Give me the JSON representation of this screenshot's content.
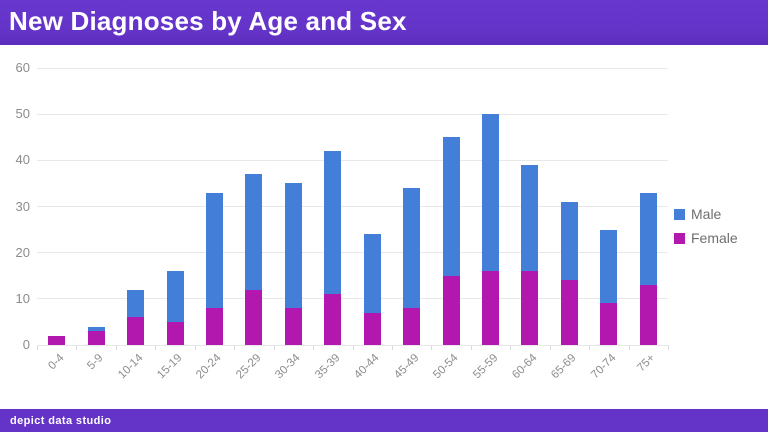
{
  "header": {
    "title": "New Diagnoses by Age and Sex"
  },
  "footer": {
    "brand": "depict data studio"
  },
  "theme": {
    "brand_purple": "#6433C8",
    "male_blue": "#437FD9",
    "female_magenta": "#B318AE",
    "grid_gray": "#E8E8E8",
    "axis_text_gray": "#8C8C8C"
  },
  "chart_data": {
    "type": "bar",
    "stacked": true,
    "title": "New Diagnoses by Age and Sex",
    "xlabel": "",
    "ylabel": "",
    "ylim": [
      0,
      60
    ],
    "yticks": [
      0,
      10,
      20,
      30,
      40,
      50,
      60
    ],
    "grid": true,
    "legend_position": "right",
    "categories": [
      "0-4",
      "5-9",
      "10-14",
      "15-19",
      "20-24",
      "25-29",
      "30-34",
      "35-39",
      "40-44",
      "45-49",
      "50-54",
      "55-59",
      "60-64",
      "65-69",
      "70-74",
      "75+"
    ],
    "series": [
      {
        "name": "Male",
        "color": "#437FD9",
        "stack_order": "top",
        "values": [
          0,
          1,
          6,
          11,
          25,
          25,
          27,
          31,
          17,
          26,
          30,
          34,
          23,
          17,
          16,
          20
        ]
      },
      {
        "name": "Female",
        "color": "#B318AE",
        "stack_order": "bottom",
        "values": [
          2,
          3,
          6,
          5,
          8,
          12,
          8,
          11,
          7,
          8,
          15,
          16,
          16,
          14,
          9,
          13
        ]
      }
    ],
    "totals": [
      2,
      4,
      12,
      16,
      33,
      37,
      35,
      42,
      24,
      34,
      45,
      50,
      39,
      31,
      25,
      33
    ]
  }
}
